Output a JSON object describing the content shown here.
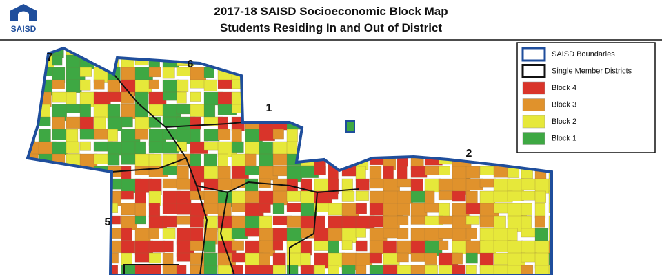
{
  "header": {
    "logo_text": "SAISD",
    "title": [
      "2017-18 SAISD Socioeconomic Block Map",
      "Students Residing In and Out of District"
    ]
  },
  "map": {
    "district_labels": [
      "7",
      "6",
      "1",
      "2",
      "5"
    ]
  },
  "legend": [
    {
      "label": "SAISD Boundaries",
      "kind": "outline",
      "color": "#1f4e9c"
    },
    {
      "label": "Single Member Districts",
      "kind": "outline",
      "color": "#111111"
    },
    {
      "label": "Block 4",
      "kind": "fill",
      "color": "#d9342a"
    },
    {
      "label": "Block 3",
      "kind": "fill",
      "color": "#e0922c"
    },
    {
      "label": "Block 2",
      "kind": "fill",
      "color": "#e6e83a"
    },
    {
      "label": "Block 1",
      "kind": "fill",
      "color": "#3ea843"
    }
  ]
}
